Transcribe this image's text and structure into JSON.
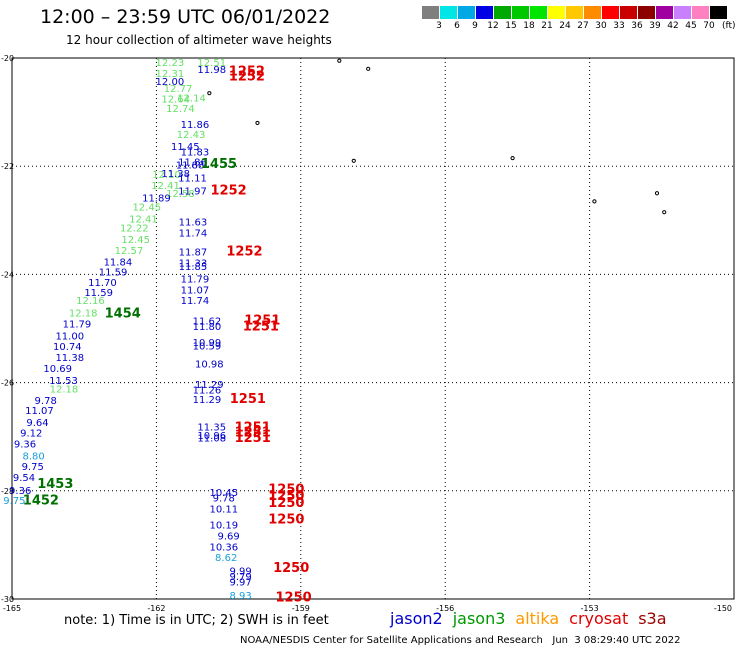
{
  "header": {
    "title": "12:00 – 23:59 UTC 06/01/2022",
    "subtitle": "12 hour collection of altimeter wave heights"
  },
  "scale": {
    "colors": [
      "#7f7f7f",
      "#00e5e5",
      "#00a9e5",
      "#0000e5",
      "#00a900",
      "#00c800",
      "#00e500",
      "#ffff00",
      "#ffc800",
      "#ff8c00",
      "#ff0000",
      "#c80000",
      "#8c0000",
      "#a000a0",
      "#c880ff",
      "#ff80c0",
      "#000000"
    ],
    "ticks": [
      "3",
      "6",
      "9",
      "12",
      "15",
      "18",
      "21",
      "24",
      "27",
      "30",
      "33",
      "36",
      "39",
      "42",
      "45",
      "70"
    ],
    "unit": "(ft)"
  },
  "axes": {
    "lat_labels": [
      "-20",
      "-22",
      "-24",
      "-26",
      "-28",
      "-30"
    ],
    "lon_labels": [
      "-165",
      "-162",
      "-159",
      "-156",
      "-153",
      "-150"
    ]
  },
  "map": {
    "islands": [
      {
        "name": "island-a",
        "lon": -158.2,
        "lat": -20.05
      },
      {
        "name": "island-b",
        "lon": -157.6,
        "lat": -20.2
      },
      {
        "name": "island-c",
        "lon": -160.9,
        "lat": -20.65
      },
      {
        "name": "island-d",
        "lon": -159.9,
        "lat": -21.2
      },
      {
        "name": "island-e",
        "lon": -157.9,
        "lat": -21.9
      },
      {
        "name": "island-f",
        "lon": -154.6,
        "lat": -21.85
      },
      {
        "name": "island-g",
        "lon": -152.9,
        "lat": -22.65
      },
      {
        "name": "island-h",
        "lon": -151.6,
        "lat": -22.5
      },
      {
        "name": "island-i",
        "lon": -151.45,
        "lat": -22.85
      }
    ]
  },
  "tracks": [
    {
      "sat": "jason3",
      "color": "#66e066",
      "points": [
        {
          "lon": -161.72,
          "lat": -20.15,
          "v": "12.23"
        },
        {
          "lon": -160.85,
          "lat": -20.15,
          "v": "12.51"
        },
        {
          "lon": -161.72,
          "lat": -20.35,
          "v": "12.31"
        },
        {
          "lon": -161.55,
          "lat": -20.63,
          "v": "12.77"
        },
        {
          "lon": -161.6,
          "lat": -20.82,
          "v": "12.64"
        },
        {
          "lon": -161.5,
          "lat": -21.0,
          "v": "12.74"
        },
        {
          "lon": -161.27,
          "lat": -20.8,
          "v": "12.14"
        },
        {
          "lon": -161.28,
          "lat": -21.48,
          "v": "12.43"
        },
        {
          "lon": -161.79,
          "lat": -22.22,
          "v": "12.10"
        },
        {
          "lon": -161.81,
          "lat": -22.42,
          "v": "12.41"
        },
        {
          "lon": -161.5,
          "lat": -22.57,
          "v": "12.58"
        },
        {
          "lon": -162.2,
          "lat": -22.82,
          "v": "12.45"
        },
        {
          "lon": -162.27,
          "lat": -23.04,
          "v": "12.41"
        },
        {
          "lon": -162.46,
          "lat": -23.21,
          "v": "12.22"
        },
        {
          "lon": -162.43,
          "lat": -23.42,
          "v": "12.45"
        },
        {
          "lon": -162.57,
          "lat": -23.62,
          "v": "12.57"
        },
        {
          "lon": -163.37,
          "lat": -24.55,
          "v": "12.16"
        },
        {
          "lon": -163.52,
          "lat": -24.78,
          "v": "12.18"
        },
        {
          "lon": -163.92,
          "lat": -26.18,
          "v": "12.18"
        }
      ]
    },
    {
      "sat": "jason2",
      "color": "#0000cc",
      "points": [
        {
          "lon": -160.85,
          "lat": -20.28,
          "v": "11.98"
        },
        {
          "lon": -161.72,
          "lat": -20.5,
          "v": "12.00"
        },
        {
          "lon": -161.2,
          "lat": -21.29,
          "v": "11.86"
        },
        {
          "lon": -161.4,
          "lat": -21.7,
          "v": "11.45"
        },
        {
          "lon": -161.2,
          "lat": -21.8,
          "v": "11.83"
        },
        {
          "lon": -161.25,
          "lat": -21.99,
          "v": "11.86"
        },
        {
          "lon": -161.3,
          "lat": -22.04,
          "v": "11.88"
        },
        {
          "lon": -161.6,
          "lat": -22.2,
          "v": "11.38"
        },
        {
          "lon": -161.25,
          "lat": -22.28,
          "v": "11.11"
        },
        {
          "lon": -161.25,
          "lat": -22.52,
          "v": "11.97"
        },
        {
          "lon": -162.0,
          "lat": -22.65,
          "v": "11.89"
        },
        {
          "lon": -161.24,
          "lat": -23.1,
          "v": "11.63"
        },
        {
          "lon": -161.24,
          "lat": -23.3,
          "v": "11.74"
        },
        {
          "lon": -161.24,
          "lat": -23.65,
          "v": "11.87"
        },
        {
          "lon": -161.24,
          "lat": -23.85,
          "v": "11.33"
        },
        {
          "lon": -161.24,
          "lat": -23.92,
          "v": "11.85"
        },
        {
          "lon": -162.8,
          "lat": -23.84,
          "v": "11.84"
        },
        {
          "lon": -162.9,
          "lat": -24.02,
          "v": "11.59"
        },
        {
          "lon": -161.2,
          "lat": -24.15,
          "v": "11.79"
        },
        {
          "lon": -163.12,
          "lat": -24.21,
          "v": "11.70"
        },
        {
          "lon": -161.2,
          "lat": -24.35,
          "v": "11.07"
        },
        {
          "lon": -163.2,
          "lat": -24.4,
          "v": "11.59"
        },
        {
          "lon": -161.2,
          "lat": -24.55,
          "v": "11.74"
        },
        {
          "lon": -160.95,
          "lat": -24.93,
          "v": "11.62"
        },
        {
          "lon": -160.95,
          "lat": -25.03,
          "v": "11.80"
        },
        {
          "lon": -163.65,
          "lat": -24.98,
          "v": "11.79"
        },
        {
          "lon": -163.8,
          "lat": -25.2,
          "v": "11.00"
        },
        {
          "lon": -163.85,
          "lat": -25.4,
          "v": "10.74"
        },
        {
          "lon": -160.95,
          "lat": -25.32,
          "v": "10.99"
        },
        {
          "lon": -160.95,
          "lat": -25.39,
          "v": "10.59"
        },
        {
          "lon": -163.8,
          "lat": -25.6,
          "v": "11.38"
        },
        {
          "lon": -160.9,
          "lat": -25.72,
          "v": "10.98"
        },
        {
          "lon": -164.05,
          "lat": -25.8,
          "v": "10.69"
        },
        {
          "lon": -163.93,
          "lat": -26.03,
          "v": "11.53"
        },
        {
          "lon": -160.9,
          "lat": -26.1,
          "v": "11.29"
        },
        {
          "lon": -160.95,
          "lat": -26.2,
          "v": "11.26"
        },
        {
          "lon": -160.95,
          "lat": -26.38,
          "v": "11.29"
        },
        {
          "lon": -164.3,
          "lat": -26.4,
          "v": "9.78"
        },
        {
          "lon": -164.43,
          "lat": -26.58,
          "v": "11.07"
        },
        {
          "lon": -164.47,
          "lat": -26.8,
          "v": "9.64"
        },
        {
          "lon": -160.85,
          "lat": -26.89,
          "v": "11.35"
        },
        {
          "lon": -164.6,
          "lat": -27.0,
          "v": "9.12"
        },
        {
          "lon": -160.85,
          "lat": -27.04,
          "v": "10.96"
        },
        {
          "lon": -160.85,
          "lat": -27.09,
          "v": "11.08"
        },
        {
          "lon": -164.73,
          "lat": -27.2,
          "v": "9.36"
        },
        {
          "lon": -164.57,
          "lat": -27.62,
          "v": "9.75"
        },
        {
          "lon": -164.75,
          "lat": -27.82,
          "v": "9.54"
        },
        {
          "lon": -164.83,
          "lat": -28.06,
          "v": "9.36"
        },
        {
          "lon": -160.6,
          "lat": -28.1,
          "v": "10.45"
        },
        {
          "lon": -160.6,
          "lat": -28.2,
          "v": "9.78"
        },
        {
          "lon": -160.6,
          "lat": -28.4,
          "v": "10.11"
        },
        {
          "lon": -160.6,
          "lat": -28.7,
          "v": "10.19"
        },
        {
          "lon": -160.5,
          "lat": -28.9,
          "v": "9.69"
        },
        {
          "lon": -160.6,
          "lat": -29.1,
          "v": "10.36"
        },
        {
          "lon": -160.25,
          "lat": -29.55,
          "v": "9.99"
        },
        {
          "lon": -160.25,
          "lat": -29.65,
          "v": "9.79"
        },
        {
          "lon": -160.25,
          "lat": -29.75,
          "v": "9.97"
        }
      ]
    },
    {
      "sat": "jason2-light",
      "color": "#1a9fd8",
      "points": [
        {
          "lon": -164.55,
          "lat": -27.42,
          "v": "8.80"
        },
        {
          "lon": -164.95,
          "lat": -28.24,
          "v": "9.75"
        },
        {
          "lon": -160.55,
          "lat": -29.3,
          "v": "8.62"
        },
        {
          "lon": -160.25,
          "lat": -30.0,
          "v": "8.93"
        }
      ]
    },
    {
      "sat": "cryosat",
      "color": "#e00000",
      "bold": true,
      "points": [
        {
          "lon": -160.12,
          "lat": -20.32,
          "v": "1252"
        },
        {
          "lon": -160.12,
          "lat": -20.42,
          "v": "1252"
        },
        {
          "lon": -160.5,
          "lat": -22.52,
          "v": "1252"
        },
        {
          "lon": -160.17,
          "lat": -23.65,
          "v": "1252"
        },
        {
          "lon": -159.8,
          "lat": -24.93,
          "v": "1251"
        },
        {
          "lon": -159.83,
          "lat": -25.04,
          "v": "1251"
        },
        {
          "lon": -160.1,
          "lat": -26.38,
          "v": "1251"
        },
        {
          "lon": -160.0,
          "lat": -26.9,
          "v": "1251"
        },
        {
          "lon": -160.0,
          "lat": -27.0,
          "v": "1251"
        },
        {
          "lon": -160.0,
          "lat": -27.1,
          "v": "1251"
        },
        {
          "lon": -159.3,
          "lat": -28.05,
          "v": "1250"
        },
        {
          "lon": -159.3,
          "lat": -28.17,
          "v": "1250"
        },
        {
          "lon": -159.3,
          "lat": -28.3,
          "v": "1250"
        },
        {
          "lon": -159.3,
          "lat": -28.6,
          "v": "1250"
        },
        {
          "lon": -159.2,
          "lat": -29.5,
          "v": "1250"
        },
        {
          "lon": -159.15,
          "lat": -30.05,
          "v": "1250"
        }
      ]
    },
    {
      "sat": "jason3-time",
      "color": "#007000",
      "bold": true,
      "points": [
        {
          "lon": -160.7,
          "lat": -22.03,
          "v": "1455"
        },
        {
          "lon": -162.7,
          "lat": -24.8,
          "v": "1454"
        },
        {
          "lon": -164.1,
          "lat": -27.95,
          "v": "1453"
        },
        {
          "lon": -164.4,
          "lat": -28.25,
          "v": "1452"
        }
      ]
    }
  ],
  "footer": {
    "note": "note: 1) Time is in UTC; 2) SWH is in feet",
    "satellites": [
      {
        "name": "jason2",
        "color": "#0000cc"
      },
      {
        "name": "jason3",
        "color": "#009900"
      },
      {
        "name": "altika",
        "color": "#ff9900"
      },
      {
        "name": "cryosat",
        "color": "#e00000"
      },
      {
        "name": "s3a",
        "color": "#990000"
      }
    ],
    "credit": "NOAA/NESDIS Center for Satellite Applications and Research   Jun  3 08:29:40 UTC 2022"
  }
}
